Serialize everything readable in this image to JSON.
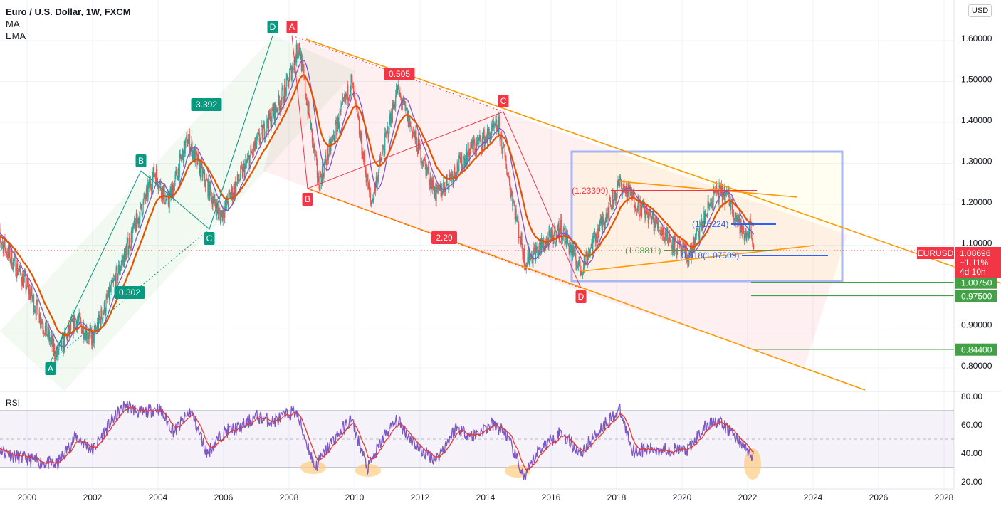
{
  "legend": {
    "title": "Euro / U.S. Dollar, 1W, FXCM",
    "indicators": [
      "MA",
      "EMA"
    ]
  },
  "currency_button": "USD",
  "rsi_title": "RSI",
  "colors": {
    "up": "#26a69a",
    "down": "#ef5350",
    "ma": "#7e57c2",
    "ema": "#e65100",
    "channel": "#ff9800",
    "fib": "#43a047",
    "box": "#a9b6f5",
    "rsi": "#7e57c2",
    "rsi_ma": "#e53935"
  },
  "price_tag": {
    "symbol": "EURUSD",
    "price": "1.08696",
    "change": "−1.11%",
    "countdown": "4d 10h"
  },
  "levels": [
    {
      "label": "1.00750",
      "value": 1.0075
    },
    {
      "label": "0.97500",
      "value": 0.975
    },
    {
      "label": "0.84400",
      "value": 0.844
    }
  ],
  "annotations": {
    "r1": "(1.23399)",
    "b1": "(1.15224)",
    "g1": "(1.08811)",
    "b2": "0.618(1.07509)"
  },
  "pattern1": {
    "A": "A",
    "B": "B",
    "C": "C",
    "D": "D",
    "r1": "0.302",
    "r2": "3.392"
  },
  "pattern2": {
    "A": "A",
    "B": "B",
    "C": "C",
    "D": "D",
    "r1": "0.505",
    "r2": "2.29"
  },
  "chart_data": [
    {
      "type": "candlestick",
      "title": "Euro / U.S. Dollar, 1W, FXCM",
      "x_ticks": [
        "2000",
        "2002",
        "2004",
        "2006",
        "2008",
        "2010",
        "2012",
        "2014",
        "2016",
        "2018",
        "2020",
        "2022",
        "2024",
        "2026",
        "2028"
      ],
      "y_ticks": [
        "1.60000",
        "1.50000",
        "1.40000",
        "1.30000",
        "1.20000",
        "1.10000",
        "0.90000",
        "0.80000"
      ],
      "ylim": [
        0.76,
        1.65
      ],
      "close_path": [
        [
          1999.0,
          1.14
        ],
        [
          2000.0,
          1.0
        ],
        [
          2000.9,
          0.83
        ],
        [
          2001.5,
          0.92
        ],
        [
          2002.0,
          0.87
        ],
        [
          2003.0,
          1.08
        ],
        [
          2003.9,
          1.28
        ],
        [
          2004.3,
          1.2
        ],
        [
          2004.9,
          1.36
        ],
        [
          2005.9,
          1.17
        ],
        [
          2006.9,
          1.33
        ],
        [
          2007.9,
          1.48
        ],
        [
          2008.3,
          1.59
        ],
        [
          2008.9,
          1.25
        ],
        [
          2009.9,
          1.5
        ],
        [
          2010.5,
          1.2
        ],
        [
          2011.3,
          1.48
        ],
        [
          2012.5,
          1.22
        ],
        [
          2013.5,
          1.33
        ],
        [
          2014.4,
          1.39
        ],
        [
          2015.2,
          1.06
        ],
        [
          2016.3,
          1.14
        ],
        [
          2016.9,
          1.04
        ],
        [
          2018.1,
          1.25
        ],
        [
          2019.9,
          1.09
        ],
        [
          2020.2,
          1.07
        ],
        [
          2021.0,
          1.23
        ],
        [
          2021.4,
          1.22
        ],
        [
          2021.9,
          1.12
        ],
        [
          2022.1,
          1.15
        ],
        [
          2022.2,
          1.087
        ]
      ]
    },
    {
      "type": "line",
      "title": "RSI",
      "y_ticks": [
        "80.00",
        "60.00",
        "40.00",
        "20.00"
      ],
      "ylim": [
        18,
        82
      ],
      "bands": [
        30,
        70
      ],
      "values": [
        [
          1999.0,
          45
        ],
        [
          1999.6,
          38
        ],
        [
          2000.4,
          34
        ],
        [
          2000.9,
          32
        ],
        [
          2001.5,
          52
        ],
        [
          2002.0,
          42
        ],
        [
          2002.5,
          60
        ],
        [
          2003.0,
          74
        ],
        [
          2003.5,
          68
        ],
        [
          2004.0,
          72
        ],
        [
          2004.5,
          55
        ],
        [
          2005.0,
          70
        ],
        [
          2005.5,
          40
        ],
        [
          2006.0,
          55
        ],
        [
          2006.5,
          58
        ],
        [
          2007.0,
          66
        ],
        [
          2007.5,
          62
        ],
        [
          2008.2,
          70
        ],
        [
          2008.8,
          30
        ],
        [
          2009.3,
          48
        ],
        [
          2009.9,
          64
        ],
        [
          2010.4,
          29
        ],
        [
          2010.9,
          52
        ],
        [
          2011.3,
          63
        ],
        [
          2012.0,
          42
        ],
        [
          2012.5,
          36
        ],
        [
          2013.1,
          58
        ],
        [
          2013.6,
          52
        ],
        [
          2014.2,
          60
        ],
        [
          2014.6,
          55
        ],
        [
          2015.2,
          22
        ],
        [
          2015.6,
          42
        ],
        [
          2016.3,
          55
        ],
        [
          2016.9,
          40
        ],
        [
          2017.6,
          60
        ],
        [
          2018.1,
          70
        ],
        [
          2018.5,
          42
        ],
        [
          2019.5,
          43
        ],
        [
          2020.2,
          42
        ],
        [
          2020.6,
          56
        ],
        [
          2021.0,
          64
        ],
        [
          2021.5,
          55
        ],
        [
          2022.0,
          42
        ],
        [
          2022.2,
          35
        ]
      ]
    }
  ]
}
